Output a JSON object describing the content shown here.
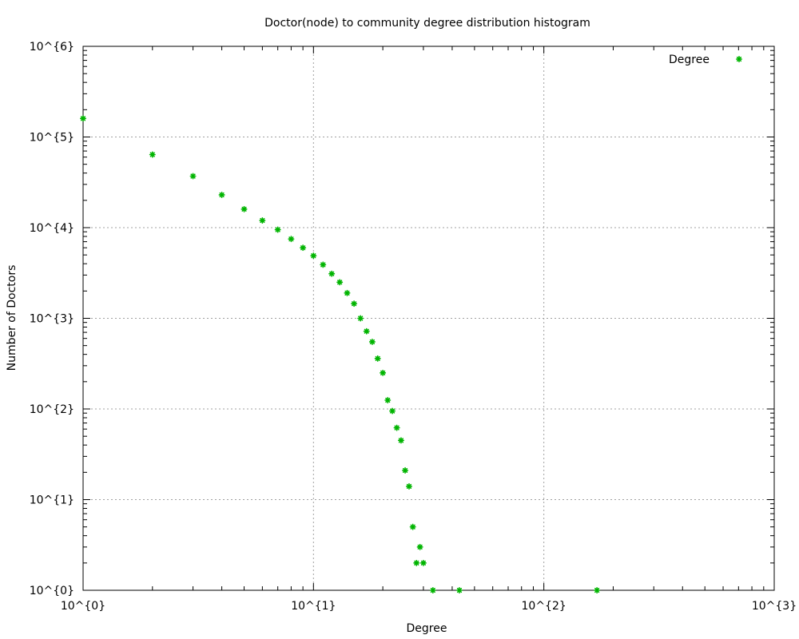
{
  "chart_data": {
    "type": "scatter",
    "title": "Doctor(node) to community degree distribution histogram",
    "xlabel": "Degree",
    "ylabel": "Number of Doctors",
    "xscale": "log",
    "yscale": "log",
    "xlim": [
      1,
      1000
    ],
    "ylim": [
      1,
      1000000
    ],
    "grid": true,
    "legend_position": "top-right",
    "x_tick_labels": [
      "10^{0}",
      "10^{1}",
      "10^{2}",
      "10^{3}"
    ],
    "y_tick_labels": [
      "10^{0}",
      "10^{1}",
      "10^{2}",
      "10^{3}",
      "10^{4}",
      "10^{5}",
      "10^{6}"
    ],
    "series": [
      {
        "name": "Degree",
        "color": "#00b400",
        "marker": "asterisk",
        "points": [
          {
            "x": 1,
            "y": 160000
          },
          {
            "x": 2,
            "y": 64000
          },
          {
            "x": 3,
            "y": 37000
          },
          {
            "x": 4,
            "y": 23000
          },
          {
            "x": 5,
            "y": 16000
          },
          {
            "x": 6,
            "y": 12000
          },
          {
            "x": 7,
            "y": 9500
          },
          {
            "x": 8,
            "y": 7500
          },
          {
            "x": 9,
            "y": 6000
          },
          {
            "x": 10,
            "y": 4900
          },
          {
            "x": 11,
            "y": 3900
          },
          {
            "x": 12,
            "y": 3100
          },
          {
            "x": 13,
            "y": 2500
          },
          {
            "x": 14,
            "y": 1900
          },
          {
            "x": 15,
            "y": 1450
          },
          {
            "x": 16,
            "y": 1000
          },
          {
            "x": 17,
            "y": 720
          },
          {
            "x": 18,
            "y": 550
          },
          {
            "x": 19,
            "y": 360
          },
          {
            "x": 20,
            "y": 250
          },
          {
            "x": 21,
            "y": 125
          },
          {
            "x": 22,
            "y": 95
          },
          {
            "x": 23,
            "y": 62
          },
          {
            "x": 24,
            "y": 45
          },
          {
            "x": 25,
            "y": 21
          },
          {
            "x": 26,
            "y": 14
          },
          {
            "x": 27,
            "y": 5
          },
          {
            "x": 28,
            "y": 2
          },
          {
            "x": 29,
            "y": 3
          },
          {
            "x": 30,
            "y": 2
          },
          {
            "x": 33,
            "y": 1
          },
          {
            "x": 43,
            "y": 1
          },
          {
            "x": 170,
            "y": 1
          }
        ]
      }
    ]
  }
}
